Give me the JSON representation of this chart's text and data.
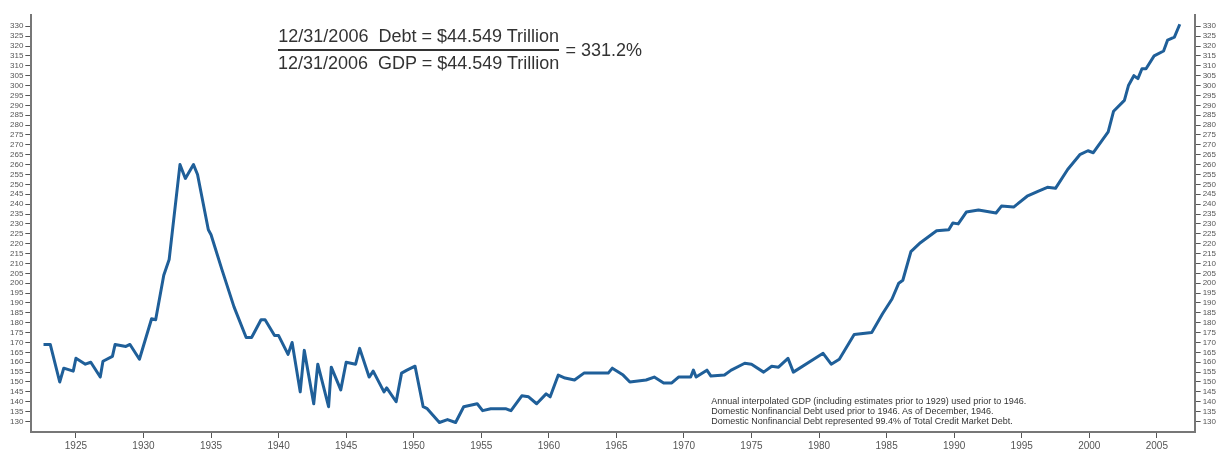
{
  "chart_data": {
    "type": "line",
    "x": [
      1922.6,
      1923.1,
      1923.8,
      1924.1,
      1924.8,
      1925,
      1925.7,
      1926.1,
      1926.8,
      1927,
      1927.7,
      1927.9,
      1928.7,
      1929,
      1929.7,
      1930.6,
      1930.9,
      1931.5,
      1931.9,
      1932.7,
      1933.1,
      1933.7,
      1934,
      1934.8,
      1935,
      1935.8,
      1936.7,
      1937.6,
      1938,
      1938.7,
      1939,
      1939.7,
      1940,
      1940.7,
      1941,
      1941.6,
      1941.9,
      1942.6,
      1942.9,
      1943.7,
      1943.9,
      1944.6,
      1945,
      1945.7,
      1946,
      1946.7,
      1947,
      1947.8,
      1948,
      1948.7,
      1949.1,
      1949.5,
      1950.1,
      1950.7,
      1951,
      1951.9,
      1952.5,
      1953.1,
      1953.7,
      1954.7,
      1955.1,
      1955.7,
      1956.8,
      1957.2,
      1958,
      1958.5,
      1959.1,
      1959.8,
      1960.1,
      1960.7,
      1961.2,
      1961.9,
      1962.6,
      1964.4,
      1964.7,
      1965.5,
      1966,
      1967.2,
      1967.8,
      1968.5,
      1969.1,
      1969.6,
      1970.5,
      1970.7,
      1970.9,
      1971.7,
      1972,
      1973,
      1973.5,
      1974.5,
      1975,
      1975.9,
      1976.5,
      1977,
      1977.7,
      1978.1,
      1979.6,
      1980.3,
      1980.9,
      1981.5,
      1982.6,
      1983.9,
      1984.7,
      1985.4,
      1985.9,
      1986.2,
      1986.8,
      1987.5,
      1988.7,
      1989.6,
      1989.9,
      1990.3,
      1990.9,
      1991.8,
      1993.1,
      1993.5,
      1994.4,
      1995.4,
      1996.2,
      1996.9,
      1997.5,
      1998.4,
      1999.3,
      1999.9,
      2000.3,
      2001.4,
      2001.8,
      2002.6,
      2002.9,
      2003.3,
      2003.6,
      2003.9,
      2004.2,
      2004.8,
      2005.5,
      2005.8,
      2006.3,
      2006.7
    ],
    "series": [
      {
        "color": "#1f5f99",
        "values": [
          169,
          169,
          150,
          157,
          155.5,
          162,
          159,
          160,
          152.5,
          160.5,
          163,
          169,
          168,
          169,
          161.5,
          182,
          181.5,
          204,
          212,
          260,
          253,
          260,
          255,
          227,
          224.5,
          207,
          188,
          172.5,
          172.5,
          181.5,
          181.5,
          173.5,
          173.5,
          164,
          170,
          145,
          166,
          139,
          159,
          137.5,
          157.5,
          146,
          160,
          159,
          167,
          152.5,
          155.5,
          145,
          147,
          140,
          154.5,
          156,
          158,
          137.5,
          136.5,
          129.5,
          131,
          129.5,
          137.5,
          139,
          135.5,
          136.5,
          136.5,
          135.5,
          143,
          142.5,
          139,
          144,
          142.5,
          153.5,
          152,
          151,
          154.5,
          154.5,
          157,
          153.5,
          150,
          151,
          152.5,
          149.5,
          149.5,
          152.5,
          152.5,
          156,
          152.5,
          156,
          153,
          153.5,
          156,
          159.5,
          159,
          155,
          158,
          157.5,
          162,
          155,
          161.5,
          164.5,
          159,
          161.5,
          174,
          175,
          184.5,
          192,
          200,
          201.5,
          216,
          220.5,
          226.5,
          227,
          230.5,
          230,
          236,
          237,
          235.5,
          239,
          238.5,
          244,
          246.5,
          248.5,
          248,
          257.5,
          265,
          267,
          266,
          276.5,
          287,
          292.5,
          300,
          305,
          303.5,
          308.5,
          308.5,
          315,
          317.5,
          323,
          324.5,
          331
        ]
      }
    ],
    "xlim": [
      1921.7,
      2007.8
    ],
    "xticks": [
      1925,
      1930,
      1935,
      1940,
      1945,
      1950,
      1955,
      1960,
      1965,
      1970,
      1975,
      1980,
      1985,
      1990,
      1995,
      2000,
      2005
    ],
    "ylim": [
      124.7,
      335.8
    ],
    "yticks": [
      130,
      135,
      140,
      145,
      150,
      155,
      160,
      165,
      170,
      175,
      180,
      185,
      190,
      195,
      200,
      205,
      210,
      215,
      220,
      225,
      230,
      235,
      240,
      245,
      250,
      255,
      260,
      265,
      270,
      275,
      280,
      285,
      290,
      295,
      300,
      305,
      310,
      315,
      320,
      325,
      330
    ],
    "y2lim": [
      124.7,
      335.8
    ],
    "y2ticks": [
      130,
      135,
      140,
      145,
      150,
      155,
      160,
      165,
      170,
      175,
      180,
      185,
      190,
      195,
      200,
      205,
      210,
      215,
      220,
      225,
      230,
      235,
      240,
      245,
      250,
      255,
      260,
      265,
      270,
      275,
      280,
      285,
      290,
      295,
      300,
      305,
      310,
      315,
      320,
      325,
      330
    ],
    "grid": false,
    "marker": "none",
    "line_style": "solid",
    "legend": false,
    "annotations": [
      "12/31/2006  Debt = $44.549 Trillion",
      "12/31/2006  GDP = $44.549 Trillion",
      "= 331.2%",
      "Annual interpolated GDP (including estimates prior to 1929) used prior to 1946.",
      "Domestic Nonfinancial Debt used prior to 1946. As of December, 1946.",
      "Domestic Nonfinancial Debt represented 99.4% of Total Credit Market Debt."
    ]
  }
}
